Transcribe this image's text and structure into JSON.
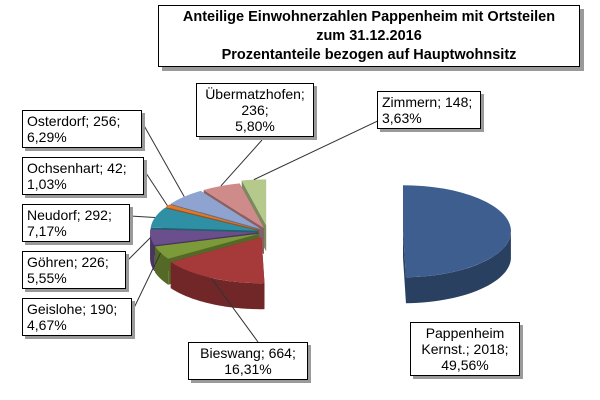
{
  "title": {
    "line1": "Anteilige Einwohnerzahlen Pappenheim mit Ortsteilen",
    "line2": "zum 31.12.2016",
    "line3": "Prozentanteile bezogen auf Hauptwohnsitz"
  },
  "chart_data": {
    "type": "pie",
    "title": "Anteilige Einwohnerzahlen Pappenheim mit Ortsteilen zum 31.12.2016 Prozentanteile bezogen auf Hauptwohnsitz",
    "three_d": true,
    "exploded": true,
    "slices": [
      {
        "name": "Pappenheim Kernst.",
        "value": 2018,
        "percent": 49.56,
        "color": "#3d5e8f",
        "label_lines": [
          "Pappenheim",
          "Kernst.; 2018;",
          "49,56%"
        ]
      },
      {
        "name": "Bieswang",
        "value": 664,
        "percent": 16.31,
        "color": "#a6393a",
        "label_lines": [
          "Bieswang; 664;",
          "16,31%"
        ]
      },
      {
        "name": "Geislohe",
        "value": 190,
        "percent": 4.67,
        "color": "#7d9a3a",
        "label_lines": [
          "Geislohe; 190;",
          "4,67%"
        ]
      },
      {
        "name": "Göhren",
        "value": 226,
        "percent": 5.55,
        "color": "#6a4f8c",
        "label_lines": [
          "Göhren; 226;",
          "5,55%"
        ]
      },
      {
        "name": "Neudorf",
        "value": 292,
        "percent": 7.17,
        "color": "#2f8fa5",
        "label_lines": [
          "Neudorf; 292;",
          "7,17%"
        ]
      },
      {
        "name": "Ochsenhart",
        "value": 42,
        "percent": 1.03,
        "color": "#e07a2a",
        "label_lines": [
          "Ochsenhart; 42;",
          "1,03%"
        ]
      },
      {
        "name": "Osterdorf",
        "value": 256,
        "percent": 6.29,
        "color": "#8fa3d0",
        "label_lines": [
          "Osterdorf; 256;",
          "6,29%"
        ]
      },
      {
        "name": "Übermatzhofen",
        "value": 236,
        "percent": 5.8,
        "color": "#cf8a8a",
        "label_lines": [
          "Übermatzhofen;",
          "236;",
          "5,80%"
        ]
      },
      {
        "name": "Zimmern",
        "value": 148,
        "percent": 3.63,
        "color": "#b4c98a",
        "label_lines": [
          "Zimmern; 148;",
          "3,63%"
        ]
      }
    ]
  }
}
